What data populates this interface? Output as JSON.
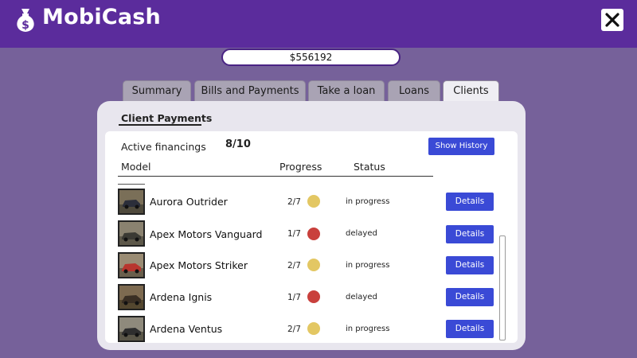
{
  "app": {
    "title": "MobiCash",
    "icon": "money-bag-icon",
    "close_icon": "close-icon"
  },
  "balance": "$556192",
  "tabs": [
    {
      "label": "Summary",
      "active": false
    },
    {
      "label": "Bills and Payments",
      "active": false
    },
    {
      "label": "Take a loan",
      "active": false
    },
    {
      "label": "Loans",
      "active": false
    },
    {
      "label": "Clients",
      "active": true
    }
  ],
  "clients": {
    "heading": "Client Payments",
    "active_label": "Active financings",
    "active_count": "8/10",
    "history_button": "Show History",
    "columns": {
      "model": "Model",
      "progress": "Progress",
      "status": "Status"
    },
    "rows": [
      {
        "model": "Aurora Outrider",
        "progress": "2/7",
        "status": "in progress",
        "status_color": "#e3c763",
        "button": "Details"
      },
      {
        "model": "Apex Motors Vanguard",
        "progress": "1/7",
        "status": "delayed",
        "status_color": "#c9403c",
        "button": "Details"
      },
      {
        "model": "Apex Motors Striker",
        "progress": "2/7",
        "status": "in progress",
        "status_color": "#e3c763",
        "button": "Details"
      },
      {
        "model": "Ardena Ignis",
        "progress": "1/7",
        "status": "delayed",
        "status_color": "#c9403c",
        "button": "Details"
      },
      {
        "model": "Ardena Ventus",
        "progress": "2/7",
        "status": "in progress",
        "status_color": "#e3c763",
        "button": "Details"
      }
    ]
  },
  "colors": {
    "header": "#5b2c9c",
    "background": "#76619a",
    "accent_button": "#3a4ad6"
  }
}
